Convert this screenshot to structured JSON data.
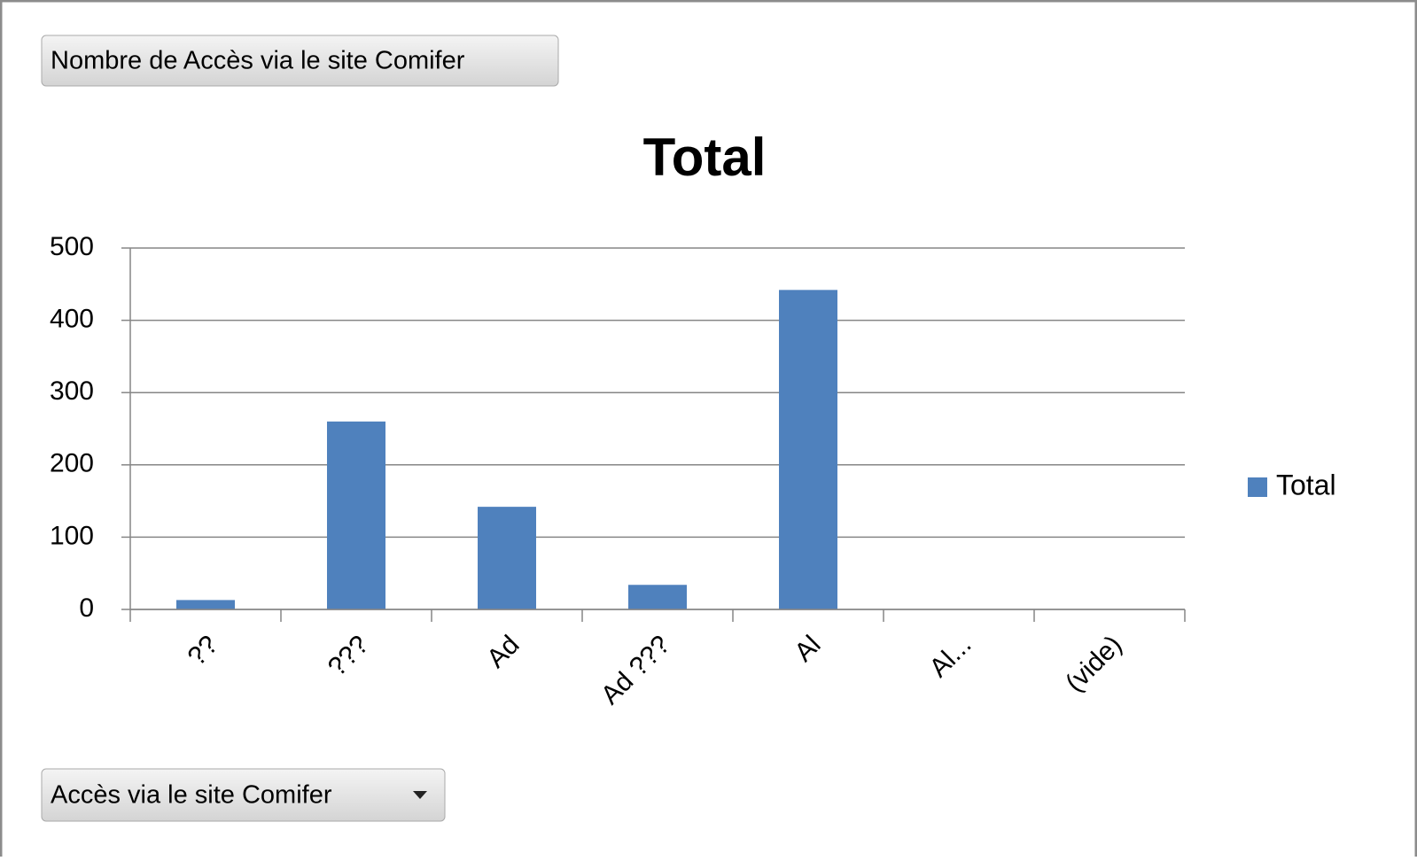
{
  "value_field_button": "Nombre de Accès via le site Comifer",
  "axis_field_button": "Accès via le site Comifer",
  "chart_data": {
    "type": "bar",
    "title": "Total",
    "categories": [
      "??",
      "???",
      "Ad",
      "Ad ???",
      "Al",
      "Al...",
      "(vide)"
    ],
    "series": [
      {
        "name": "Total",
        "color": "#4f81bd",
        "values": [
          13,
          260,
          142,
          34,
          442,
          null,
          null
        ]
      }
    ],
    "ylim": [
      0,
      500
    ],
    "yticks": [
      0,
      100,
      200,
      300,
      400,
      500
    ],
    "grid": true,
    "legend": "right"
  }
}
